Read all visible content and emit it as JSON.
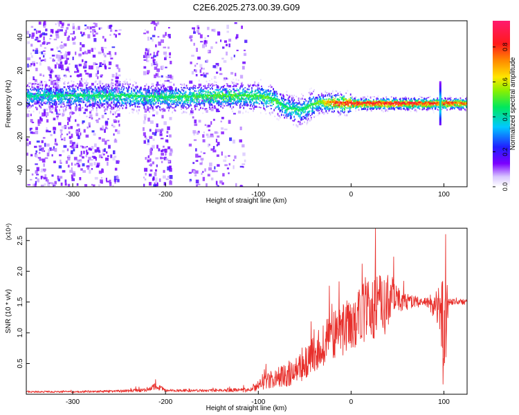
{
  "figure": {
    "title": "C2E6.2025.273.00.39.G09"
  },
  "chart_data": [
    {
      "type": "heatmap",
      "xlabel": "Height of straight line (km)",
      "ylabel": "Frequency (Hz)",
      "xlim": [
        -350,
        125
      ],
      "ylim": [
        -50,
        50
      ],
      "xticks": [
        -300,
        -200,
        -100,
        0,
        100
      ],
      "yticks": [
        -40,
        -20,
        0,
        20,
        40
      ],
      "colorbar": {
        "label": "Normalized spectral amplitude",
        "range": [
          0,
          0.95
        ],
        "ticks": [
          "0.0",
          "0.2",
          "0.4",
          "0.6",
          "0.8"
        ],
        "colormap": "rainbow (white-violet-blue-cyan-green-yellow-orange-red-pink)"
      },
      "ridge": {
        "description": "dominant frequency trace",
        "x": [
          -350,
          -250,
          -200,
          -150,
          -120,
          -100,
          -85,
          -70,
          -55,
          -45,
          -35,
          -20,
          0,
          50,
          90,
          125
        ],
        "y": [
          5,
          5,
          4,
          5,
          5,
          5,
          3,
          -2,
          -4,
          -1,
          1,
          1,
          0.5,
          0.5,
          0.5,
          0.5
        ],
        "peak_amplitude": [
          0.45,
          0.5,
          0.5,
          0.55,
          0.55,
          0.55,
          0.55,
          0.5,
          0.5,
          0.5,
          0.6,
          0.85,
          0.9,
          0.9,
          0.85,
          0.8
        ]
      },
      "grid": false
    },
    {
      "type": "line",
      "xlabel": "Height of straight line (km)",
      "ylabel": "SNR (10 * v/v)",
      "multiplier": "(x10⁴)",
      "xlim": [
        -350,
        125
      ],
      "ylim": [
        0,
        27000
      ],
      "xticks": [
        -300,
        -200,
        -100,
        0,
        100
      ],
      "yticks": [
        "0.5",
        "1.0",
        "1.5",
        "2.0",
        "2.5"
      ],
      "series": [
        {
          "color": "#e8302c",
          "envelope": {
            "x": [
              -350,
              -300,
              -250,
              -220,
              -210,
              -200,
              -150,
              -110,
              -100,
              -80,
              -60,
              -40,
              -20,
              0,
              20,
              35,
              45,
              55,
              80,
              95,
              100,
              105,
              125
            ],
            "mean": [
              400,
              400,
              500,
              700,
              1300,
              600,
              600,
              700,
              1500,
              2800,
              3500,
              6500,
              9500,
              11500,
              14000,
              15000,
              16000,
              15000,
              15000,
              14000,
              10000,
              15000,
              15000
            ],
            "spread": [
              150,
              150,
              200,
              300,
              600,
              250,
              200,
              400,
              900,
              1600,
              2200,
              3000,
              4000,
              4500,
              5000,
              6000,
              3000,
              1500,
              700,
              3000,
              12000,
              600,
              400
            ]
          }
        }
      ],
      "grid": false
    }
  ]
}
